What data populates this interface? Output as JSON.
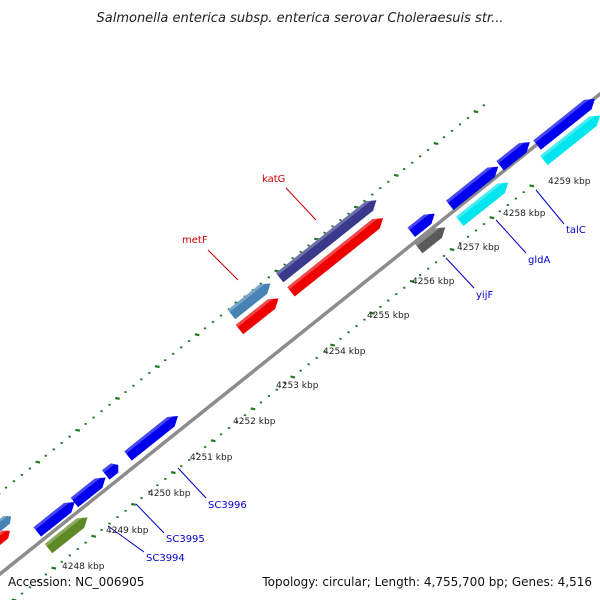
{
  "title": "Salmonella enterica subsp. enterica serovar Choleraesuis str...",
  "footer": {
    "accession": "Accession: NC_006905",
    "summary": "Topology: circular; Length: 4,755,700 bp; Genes: 4,516"
  },
  "colors": {
    "backbone": "#8c8c8c",
    "dots": "#1f7a1f",
    "blue": "#0000ee",
    "navy": "#3a3a8c",
    "red": "#ee0000",
    "steel": "#4682b4",
    "cyan": "#00e5ee",
    "gray": "#5a5a5a",
    "olive": "#5e8a26",
    "label_blue": "#0000cc",
    "label_red": "#cc0000"
  },
  "ticks": [
    "4248 kbp",
    "4249 kbp",
    "4250 kbp",
    "4251 kbp",
    "4252 kbp",
    "4253 kbp",
    "4254 kbp",
    "4255 kbp",
    "4256 kbp",
    "4257 kbp",
    "4258 kbp",
    "4259 kbp"
  ],
  "gene_labels": [
    {
      "name": "katG",
      "color": "label_red"
    },
    {
      "name": "metF",
      "color": "label_red"
    },
    {
      "name": "yijF",
      "color": "label_blue"
    },
    {
      "name": "gldA",
      "color": "label_blue"
    },
    {
      "name": "talC",
      "color": "label_blue"
    },
    {
      "name": "SC3996",
      "color": "label_blue"
    },
    {
      "name": "SC3995",
      "color": "label_blue"
    },
    {
      "name": "SC3994",
      "color": "label_blue"
    }
  ]
}
